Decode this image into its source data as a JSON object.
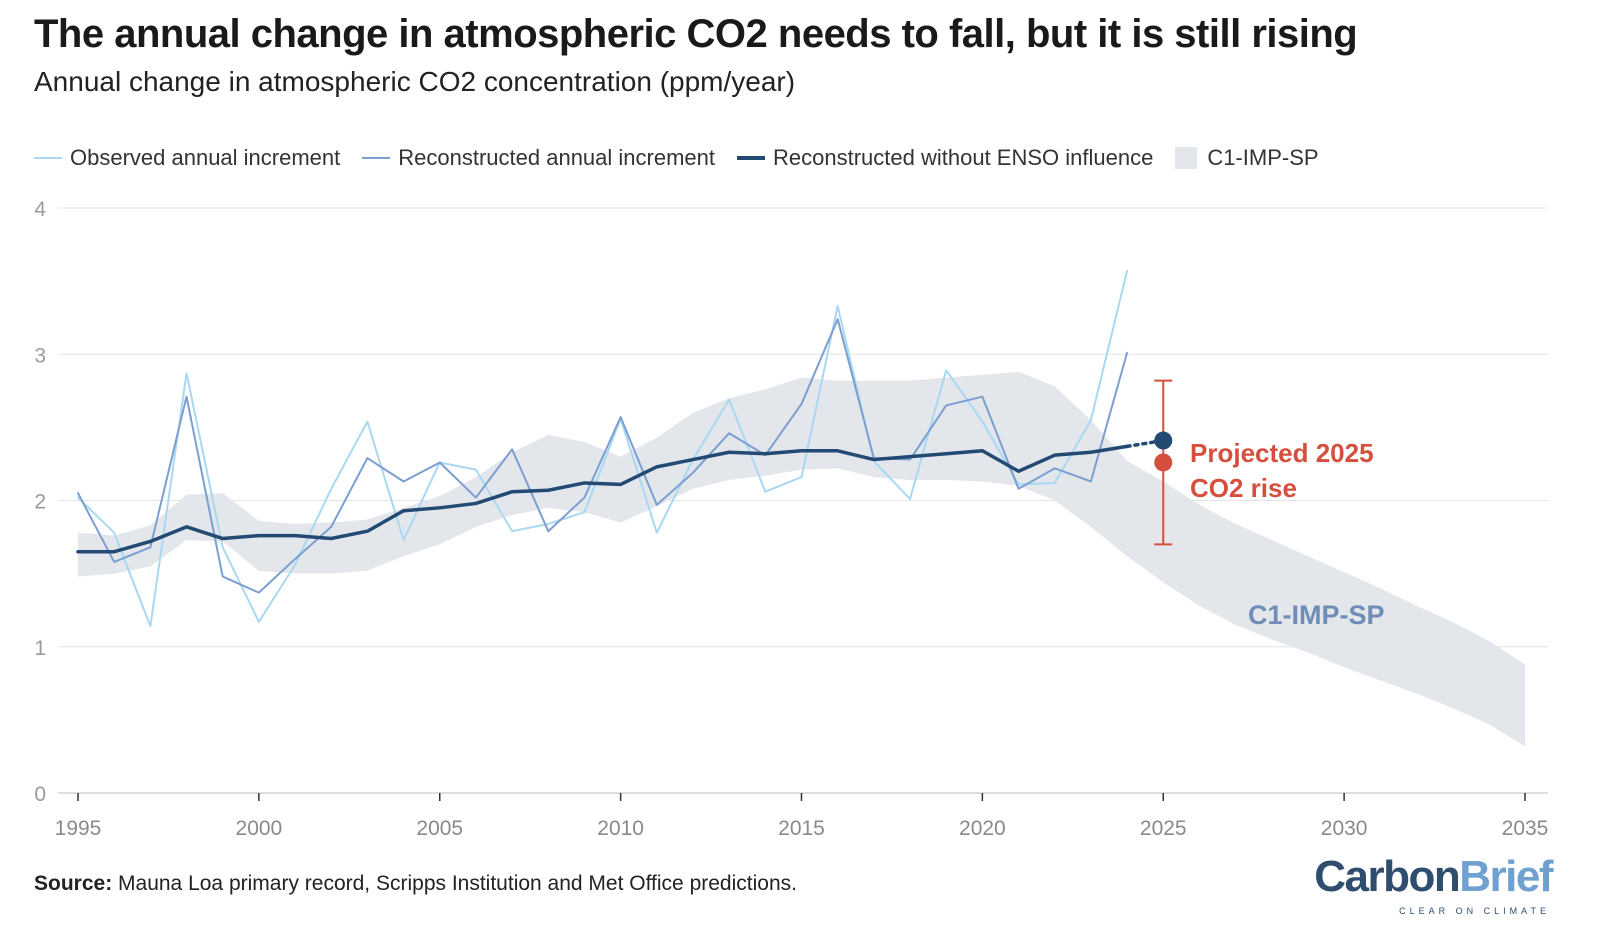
{
  "title": "The annual change in atmospheric CO2 needs to fall, but it is still rising",
  "subtitle": "Annual change in atmospheric CO2 concentration (ppm/year)",
  "legend": {
    "observed": "Observed annual increment",
    "reconstructed": "Reconstructed annual increment",
    "no_enso": "Reconstructed without ENSO influence",
    "band": "C1-IMP-SP"
  },
  "source": {
    "label": "Source:",
    "text": "Mauna Loa primary record, Scripps Institution and Met Office predictions."
  },
  "logo": {
    "name_part1": "Carbon",
    "name_part2": "Brief",
    "tagline": "CLEAR ON CLIMATE"
  },
  "colors": {
    "observed": "#a8d8f2",
    "reconstructed": "#7b9fd0",
    "no_enso": "#234a73",
    "band": "#e3e7ec",
    "projection": "#d64f3e",
    "band_label": "#6f8db6",
    "grid": "#e4e4e4"
  },
  "chart_data": {
    "type": "line",
    "title": "The annual change in atmospheric CO2 needs to fall, but it is still rising",
    "subtitle": "Annual change in atmospheric CO2 concentration (ppm/year)",
    "xlim": [
      1995,
      2035
    ],
    "ylim": [
      0,
      4
    ],
    "x_ticks": [
      1995,
      2000,
      2005,
      2010,
      2015,
      2020,
      2025,
      2030,
      2035
    ],
    "y_ticks": [
      0,
      1,
      2,
      3,
      4
    ],
    "grid": true,
    "legend_position": "top",
    "series": [
      {
        "name": "Observed annual increment",
        "x": [
          1995,
          1996,
          1997,
          1998,
          1999,
          2000,
          2001,
          2002,
          2003,
          2004,
          2005,
          2006,
          2007,
          2008,
          2009,
          2010,
          2011,
          2012,
          2013,
          2014,
          2015,
          2016,
          2017,
          2018,
          2019,
          2020,
          2021,
          2022,
          2023,
          2024
        ],
        "y": [
          2.02,
          1.78,
          1.14,
          2.87,
          1.68,
          1.17,
          1.56,
          2.08,
          2.54,
          1.73,
          2.26,
          2.21,
          1.79,
          1.84,
          1.92,
          2.56,
          1.78,
          2.28,
          2.69,
          2.06,
          2.16,
          3.33,
          2.27,
          2.01,
          2.89,
          2.54,
          2.11,
          2.12,
          2.55,
          3.57
        ]
      },
      {
        "name": "Reconstructed annual increment",
        "x": [
          1995,
          1996,
          1997,
          1998,
          1999,
          2000,
          2001,
          2002,
          2003,
          2004,
          2005,
          2006,
          2007,
          2008,
          2009,
          2010,
          2011,
          2012,
          2013,
          2014,
          2015,
          2016,
          2017,
          2018,
          2019,
          2020,
          2021,
          2022,
          2023,
          2024
        ],
        "y": [
          2.05,
          1.58,
          1.68,
          2.71,
          1.48,
          1.37,
          1.6,
          1.82,
          2.29,
          2.13,
          2.26,
          2.02,
          2.35,
          1.79,
          2.02,
          2.57,
          1.97,
          2.19,
          2.46,
          2.31,
          2.66,
          3.24,
          2.29,
          2.28,
          2.65,
          2.71,
          2.08,
          2.22,
          2.13,
          3.01
        ]
      },
      {
        "name": "Reconstructed without ENSO influence",
        "x": [
          1995,
          1996,
          1997,
          1998,
          1999,
          2000,
          2001,
          2002,
          2003,
          2004,
          2005,
          2006,
          2007,
          2008,
          2009,
          2010,
          2011,
          2012,
          2013,
          2014,
          2015,
          2016,
          2017,
          2018,
          2019,
          2020,
          2021,
          2022,
          2023,
          2024
        ],
        "y": [
          1.65,
          1.65,
          1.72,
          1.82,
          1.74,
          1.76,
          1.76,
          1.74,
          1.79,
          1.93,
          1.95,
          1.98,
          2.06,
          2.07,
          2.12,
          2.11,
          2.23,
          2.28,
          2.33,
          2.32,
          2.34,
          2.34,
          2.28,
          2.3,
          2.32,
          2.34,
          2.2,
          2.31,
          2.33,
          2.37
        ]
      }
    ],
    "band": {
      "name": "C1-IMP-SP",
      "x": [
        1995,
        1996,
        1997,
        1998,
        1999,
        2000,
        2001,
        2002,
        2003,
        2004,
        2005,
        2006,
        2007,
        2008,
        2009,
        2010,
        2011,
        2012,
        2013,
        2014,
        2015,
        2016,
        2017,
        2018,
        2019,
        2020,
        2021,
        2022,
        2023,
        2024,
        2025,
        2026,
        2027,
        2028,
        2029,
        2030,
        2031,
        2032,
        2033,
        2034,
        2035
      ],
      "lower": [
        1.48,
        1.5,
        1.55,
        1.73,
        1.72,
        1.52,
        1.5,
        1.5,
        1.52,
        1.62,
        1.7,
        1.82,
        1.9,
        1.95,
        1.92,
        1.85,
        1.96,
        2.08,
        2.14,
        2.17,
        2.21,
        2.22,
        2.16,
        2.14,
        2.14,
        2.13,
        2.1,
        2.0,
        1.82,
        1.62,
        1.44,
        1.28,
        1.15,
        1.05,
        0.96,
        0.86,
        0.77,
        0.68,
        0.58,
        0.47,
        0.32
      ],
      "upper": [
        1.78,
        1.76,
        1.83,
        2.04,
        2.05,
        1.86,
        1.84,
        1.85,
        1.87,
        1.95,
        2.03,
        2.16,
        2.33,
        2.45,
        2.4,
        2.3,
        2.43,
        2.6,
        2.7,
        2.76,
        2.84,
        2.82,
        2.82,
        2.82,
        2.84,
        2.86,
        2.88,
        2.78,
        2.55,
        2.27,
        2.13,
        1.97,
        1.84,
        1.73,
        1.62,
        1.51,
        1.4,
        1.28,
        1.17,
        1.04,
        0.88
      ]
    },
    "projection": {
      "label_line1": "Projected 2025",
      "label_line2": "CO2 rise",
      "year": 2025,
      "central": 2.26,
      "low": 1.7,
      "high": 2.82,
      "no_enso_point": 2.41
    },
    "band_label": "C1-IMP-SP"
  }
}
